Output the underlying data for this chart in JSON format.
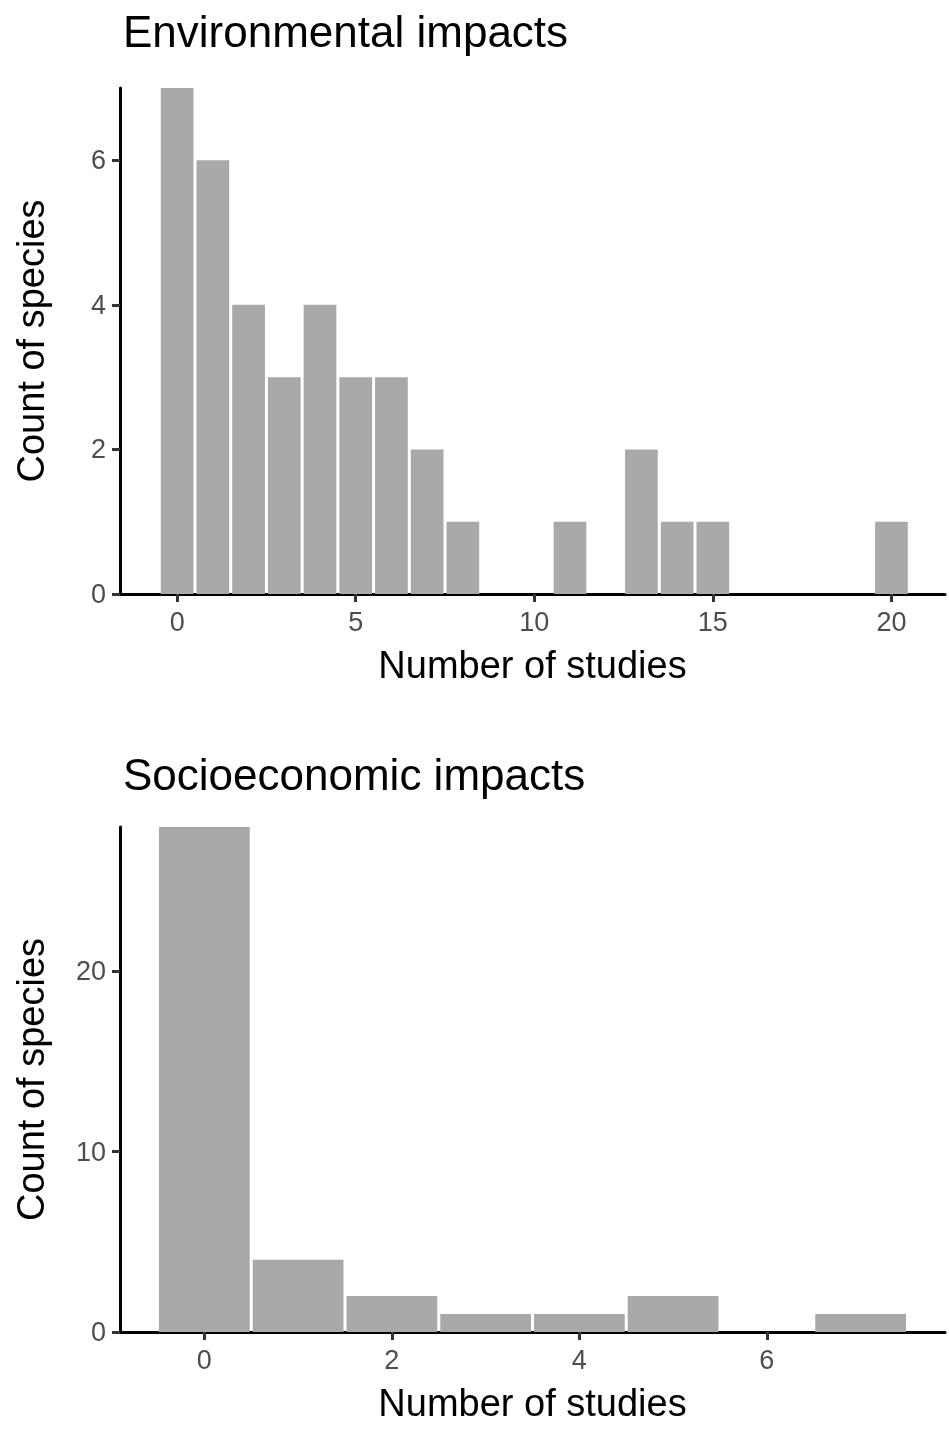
{
  "chart_data": [
    {
      "type": "histogram",
      "title": "Environmental impacts",
      "xlabel": "Number of studies",
      "ylabel": "Count of species",
      "color": "#a9a9a9",
      "bins": [
        -0.5,
        0.5,
        1.5,
        2.5,
        3.5,
        4.5,
        5.5,
        6.5,
        7.5,
        8.5,
        9.5,
        10.5,
        11.5,
        12.5,
        13.5,
        14.5,
        15.5,
        16.5,
        17.5,
        18.5,
        19.5,
        20.5
      ],
      "values": [
        7,
        6,
        4,
        3,
        4,
        3,
        3,
        2,
        1,
        0,
        0,
        1,
        0,
        2,
        1,
        1,
        0,
        0,
        0,
        0,
        1
      ],
      "xlim": [
        -1.6,
        21.5
      ],
      "xticks": [
        0,
        5,
        10,
        15,
        20
      ],
      "ylim": [
        0,
        7
      ],
      "yticks": [
        0,
        2,
        4,
        6
      ],
      "grid": false
    },
    {
      "type": "histogram",
      "title": "Socioeconomic impacts",
      "xlabel": "Number of studies",
      "ylabel": "Count of species",
      "color": "#a9a9a9",
      "bins": [
        -0.5,
        0.5,
        1.5,
        2.5,
        3.5,
        4.5,
        5.5,
        6.5,
        7.5
      ],
      "values": [
        28,
        4,
        2,
        1,
        1,
        2,
        0,
        1
      ],
      "xlim": [
        -0.9,
        7.9
      ],
      "xticks": [
        0,
        2,
        4,
        6
      ],
      "ylim": [
        0,
        28
      ],
      "yticks": [
        0,
        10,
        20
      ],
      "grid": false
    }
  ]
}
